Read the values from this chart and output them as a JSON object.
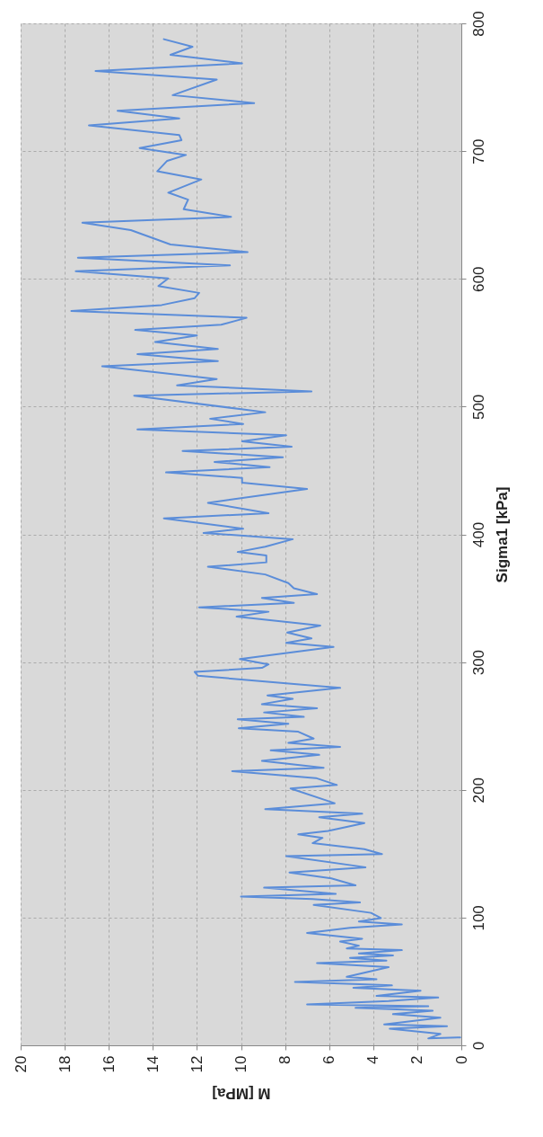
{
  "chart_data": {
    "type": "line",
    "xlabel": "M [MPa]",
    "ylabel": "Sigma1 [kPa]",
    "xlim": [
      20,
      0
    ],
    "ylim": [
      0,
      800
    ],
    "xticks": [
      20,
      18,
      16,
      14,
      12,
      10,
      8,
      6,
      4,
      2,
      0
    ],
    "yticks": [
      0,
      100,
      200,
      300,
      400,
      500,
      600,
      700,
      800
    ],
    "grid": true,
    "legend": false,
    "marker": "none",
    "line_style": "solid",
    "values": [
      6.2,
      5.4,
      8.9,
      13.0,
      14.9,
      16.3,
      21.7,
      24.4,
      27.1,
      29.3,
      30.6,
      32.0,
      34.7,
      37.4,
      38.7,
      42.8,
      45.0,
      46.9,
      49.6,
      51.7,
      53.6,
      61.2,
      64.4,
      66.3,
      68.5,
      70.4,
      72.0,
      74.5,
      75.8,
      78.0,
      81.2,
      83.4,
      88.0,
      92.0,
      94.7,
      96.9,
      99.6,
      103.7,
      109.9,
      111.8,
      114.5,
      116.4,
      118.6,
      123.4,
      125.3,
      130.7,
      135.3,
      139.4,
      148.1,
      149.7,
      153.5,
      158.3,
      162.4,
      165.1,
      167.8,
      174.0,
      178.6,
      181.3,
      184.9,
      189.5,
      201.1,
      203.8,
      209.2,
      214.6,
      217.3,
      222.7,
      227.4,
      230.9,
      233.6,
      236.8,
      240.1,
      245.5,
      248.2,
      251.7,
      255.2,
      257.1,
      260.6,
      263.9,
      267.1,
      271.2,
      273.9,
      279.8,
      283.4,
      289.3,
      292.3,
      295.5,
      298.2,
      302.3,
      311.8,
      315.0,
      318.5,
      323.1,
      328.6,
      335.6,
      339.4,
      342.9,
      346.4,
      350.2,
      353.2,
      357.8,
      361.8,
      368.6,
      374.6,
      378.1,
      383.5,
      386.2,
      390.3,
      396.2,
      401.1,
      404.4,
      412.5,
      416.6,
      424.7,
      435.5,
      440.4,
      444.2,
      448.5,
      452.6,
      456.7,
      460.4,
      465.3,
      468.6,
      472.9,
      477.5,
      482.1,
      486.4,
      490.5,
      495.6,
      508.6,
      511.9,
      516.7,
      521.6,
      531.6,
      535.7,
      541.1,
      545.1,
      550.6,
      555.7,
      560.0,
      564.1,
      569.5,
      574.9,
      579.5,
      584.9,
      589.0,
      594.4,
      600.3,
      606.0,
      610.6,
      616.6,
      620.9,
      626.9,
      638.2,
      643.9,
      648.5,
      654.5,
      662.0,
      667.5,
      677.8,
      684.2,
      692.4,
      697.0,
      702.4,
      708.6,
      712.6,
      720.2,
      725.6,
      731.6,
      737.6,
      743.8,
      756.0,
      762.7,
      768.7,
      775.4,
      781.7,
      787.6
    ],
    "x": [
      0.05,
      1.5,
      0.95,
      3.25,
      0.65,
      3.5,
      0.95,
      3.1,
      1.3,
      4.8,
      1.5,
      7.0,
      3.3,
      1.05,
      3.85,
      1.85,
      4.9,
      3.15,
      7.55,
      3.85,
      5.2,
      3.3,
      6.55,
      3.4,
      5.05,
      3.1,
      4.65,
      2.7,
      5.2,
      4.65,
      5.5,
      4.5,
      7.0,
      5.05,
      2.7,
      4.65,
      3.65,
      4.1,
      6.7,
      4.6,
      6.75,
      10.0,
      5.7,
      8.95,
      4.8,
      5.9,
      7.8,
      4.35,
      7.95,
      3.6,
      4.4,
      6.75,
      6.3,
      7.4,
      6.05,
      4.4,
      6.45,
      4.5,
      8.9,
      5.75,
      7.75,
      5.65,
      6.6,
      10.4,
      6.25,
      9.05,
      6.45,
      8.65,
      5.5,
      7.85,
      6.7,
      7.4,
      10.1,
      7.85,
      10.15,
      7.15,
      8.95,
      6.55,
      9.05,
      7.65,
      8.8,
      5.5,
      7.95,
      11.95,
      12.1,
      9.05,
      8.75,
      10.05,
      5.8,
      7.95,
      6.8,
      7.9,
      6.4,
      10.2,
      8.75,
      11.9,
      7.6,
      9.05,
      6.55,
      7.6,
      7.85,
      8.9,
      11.5,
      8.85,
      8.85,
      10.15,
      8.9,
      7.65,
      11.7,
      9.9,
      13.5,
      8.75,
      11.5,
      7.0,
      9.95,
      9.95,
      13.4,
      8.7,
      11.2,
      8.1,
      12.65,
      7.7,
      9.95,
      7.95,
      14.7,
      9.9,
      11.4,
      8.9,
      14.85,
      6.8,
      12.9,
      11.1,
      16.3,
      11.05,
      14.7,
      11.05,
      13.9,
      12.0,
      14.8,
      10.9,
      9.75,
      17.7,
      13.6,
      12.1,
      11.9,
      13.75,
      13.3,
      17.5,
      10.5,
      17.4,
      9.7,
      13.2,
      15.0,
      17.2,
      10.45,
      12.6,
      12.4,
      13.3,
      11.8,
      13.8,
      13.35,
      12.5,
      14.6,
      12.7,
      12.8,
      16.9,
      12.8,
      15.6,
      9.4,
      13.1,
      11.1,
      16.6,
      9.95,
      13.2,
      12.2,
      13.5
    ],
    "color": "#5b8dd9"
  }
}
